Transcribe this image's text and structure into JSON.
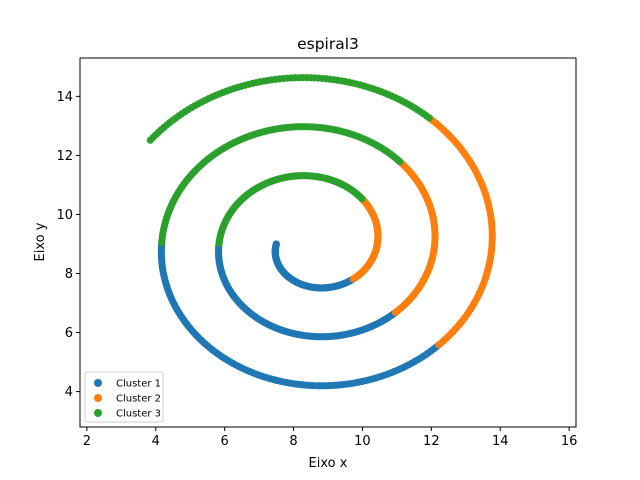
{
  "chart_data": {
    "type": "scatter",
    "title": "espiral3",
    "xlabel": "Eixo x",
    "ylabel": "Eixo y",
    "xlim": [
      1.8,
      16.2
    ],
    "ylim": [
      2.8,
      15.3
    ],
    "xticks": [
      2,
      4,
      6,
      8,
      10,
      12,
      14,
      16
    ],
    "yticks": [
      4,
      6,
      8,
      10,
      12,
      14
    ],
    "grid": false,
    "legend_position": "lower-left",
    "spiral": {
      "center": [
        8.55,
        9.0
      ],
      "theta_start": 3.1416,
      "theta_end": 21.35,
      "radius_start": 1.05,
      "radius_slope": 0.265,
      "step": 0.02
    },
    "series": [
      {
        "name": "Cluster 1",
        "color": "#1f77b4",
        "theta_ranges": [
          [
            3.1416,
            5.5
          ],
          [
            9.42,
            11.8
          ],
          [
            15.7,
            18.1
          ]
        ]
      },
      {
        "name": "Cluster 2",
        "color": "#ff7f0e",
        "theta_ranges": [
          [
            5.5,
            7.1
          ],
          [
            11.8,
            13.4
          ],
          [
            18.1,
            19.75
          ]
        ]
      },
      {
        "name": "Cluster 3",
        "color": "#2ca02c",
        "theta_ranges": [
          [
            7.1,
            9.42
          ],
          [
            13.4,
            15.7
          ],
          [
            19.75,
            21.35
          ]
        ]
      }
    ]
  }
}
